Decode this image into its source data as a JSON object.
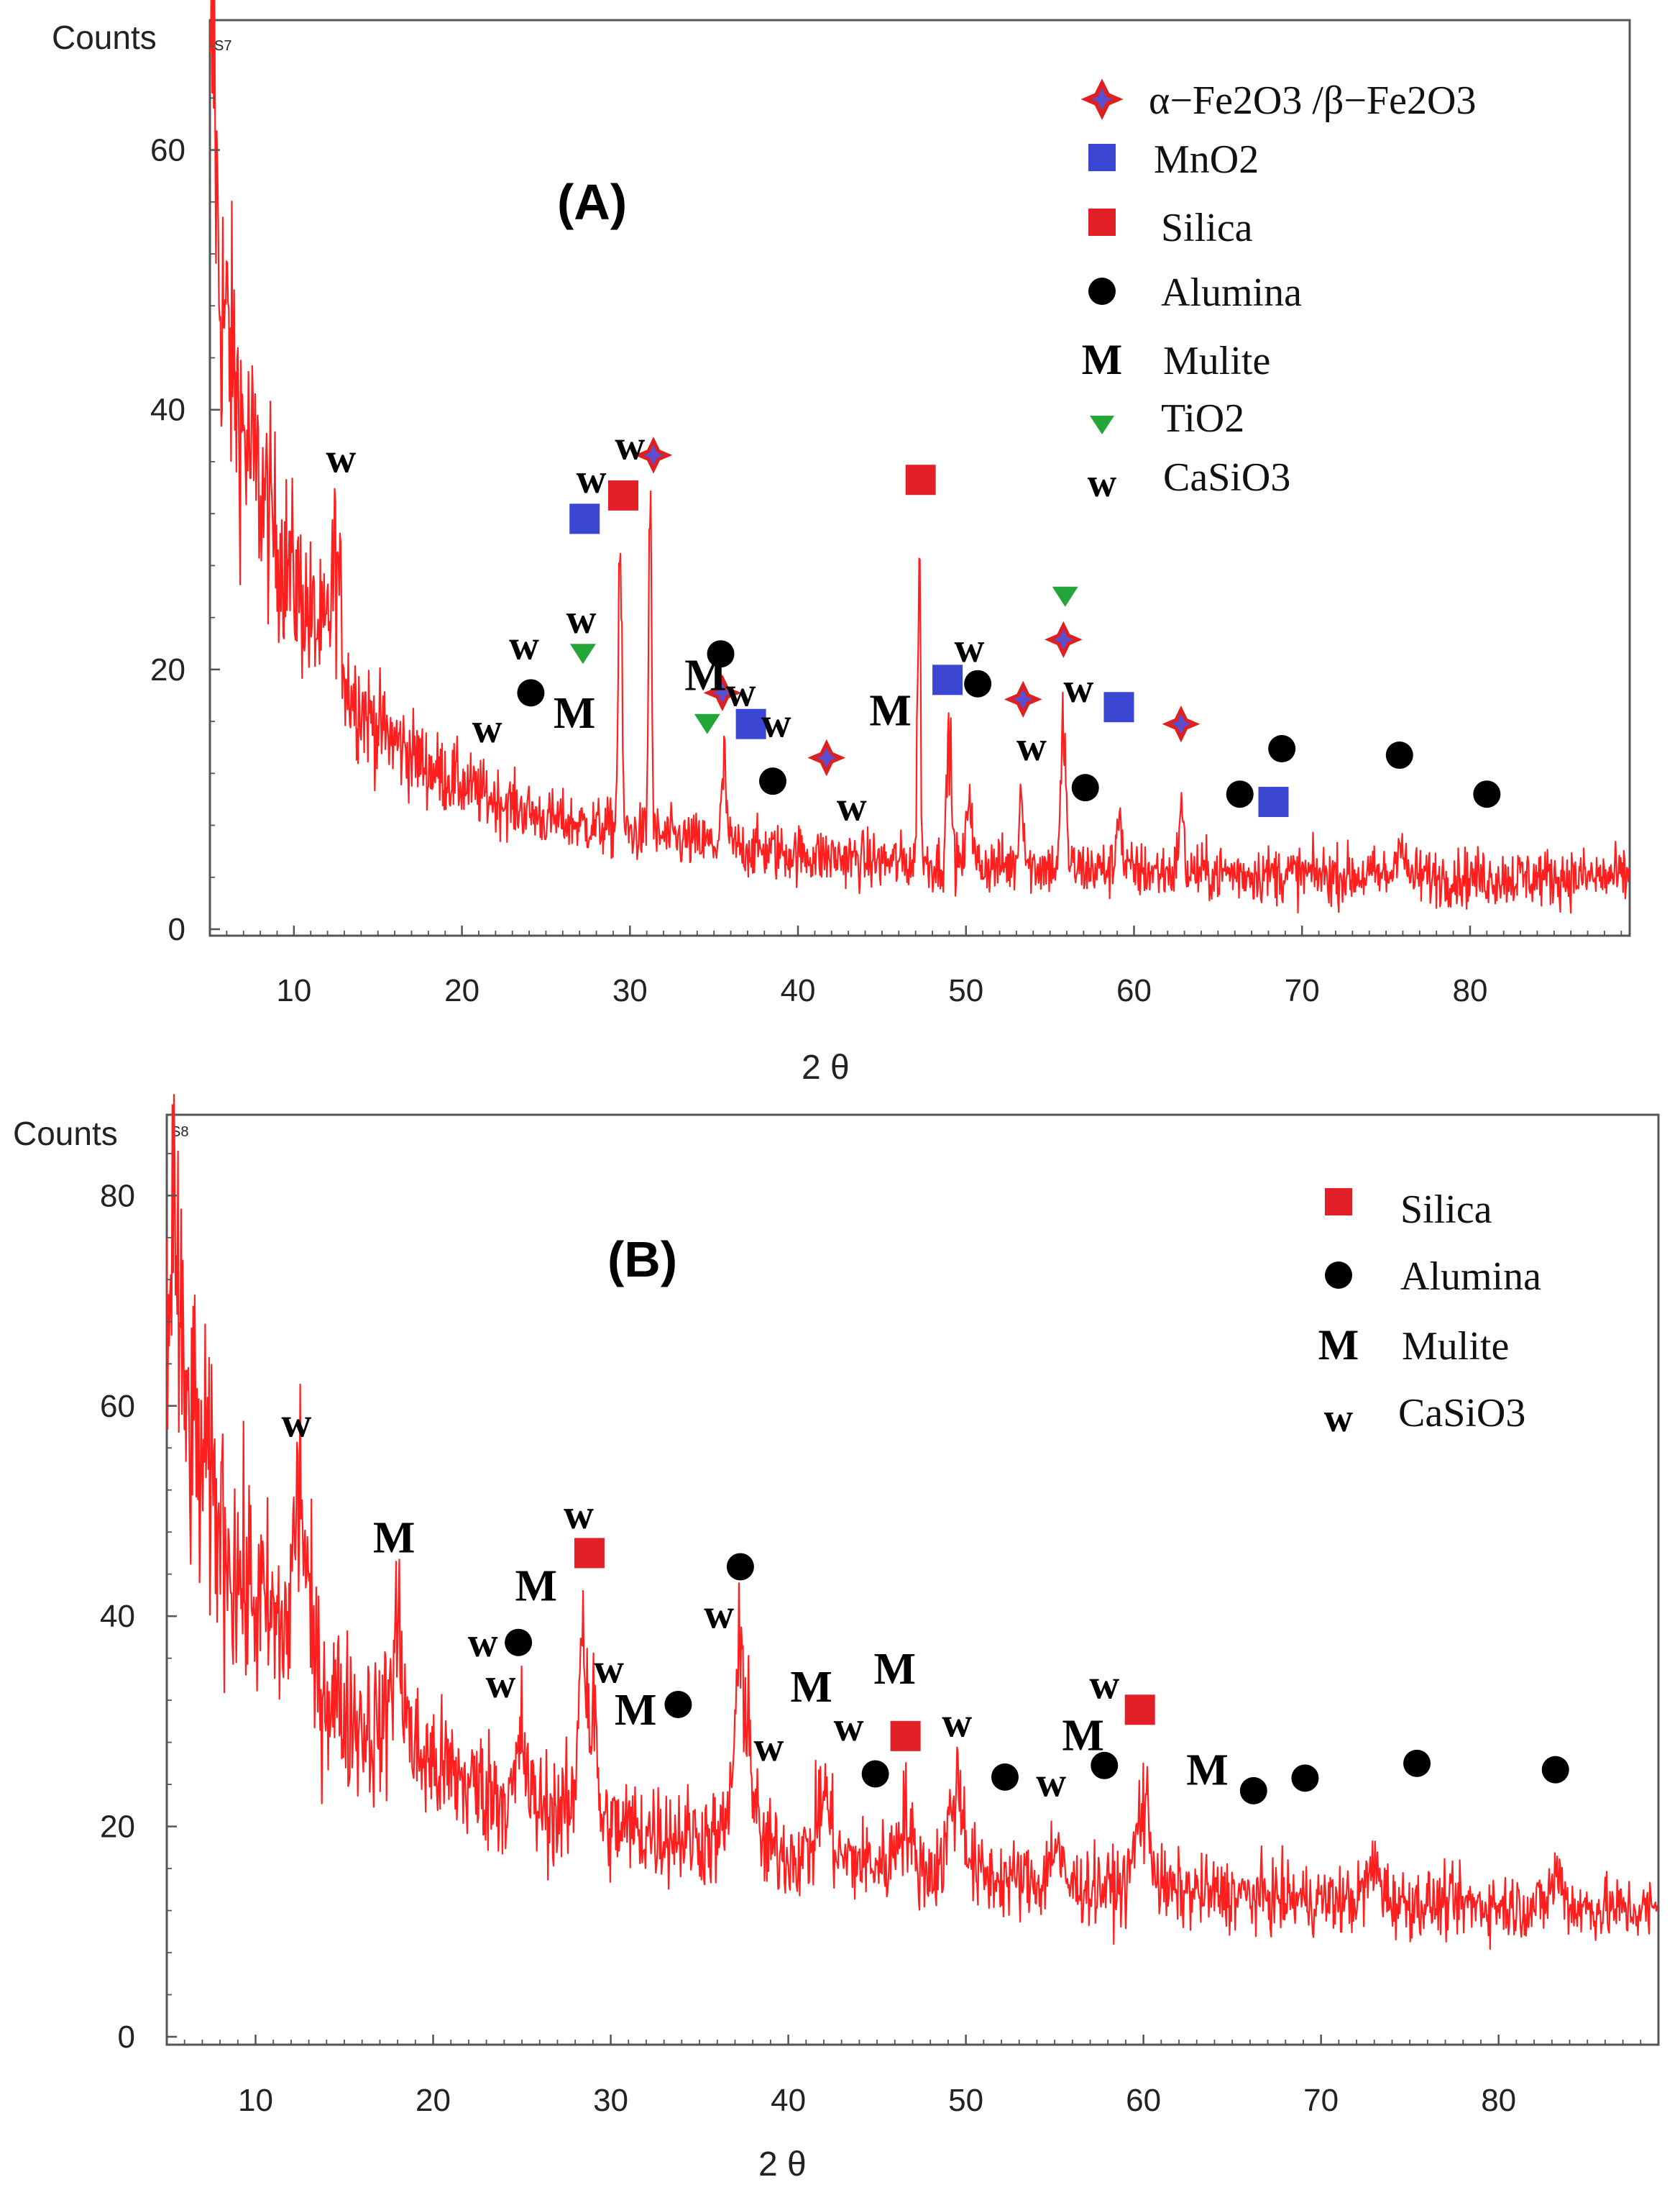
{
  "colors": {
    "trace": "#ff1f1f",
    "fe2o3_star_fill": "#5a4fd0",
    "fe2o3_star_outline": "#e0201e",
    "mno2": "#3a46d2",
    "silica": "#e32027",
    "alumina": "#000000",
    "tio2": "#22a63a",
    "axis": "#555555"
  },
  "chart_data": [
    {
      "type": "line",
      "panel_label": "(A)",
      "ylabel": "Counts",
      "xlabel": "2 θ",
      "scan_id": "S7",
      "xlim": [
        5,
        89.5
      ],
      "ylim": [
        0,
        70
      ],
      "x_ticks": [
        10,
        20,
        30,
        40,
        50,
        60,
        70,
        80
      ],
      "y_ticks": [
        0,
        20,
        40,
        60
      ],
      "legend": [
        {
          "symbol": "star-icon",
          "label": "α−Fe2O3 /β−Fe2O3"
        },
        {
          "symbol": "blue-square-icon",
          "label": "MnO2"
        },
        {
          "symbol": "red-square-icon",
          "label": "Silica"
        },
        {
          "symbol": "black-circle-icon",
          "label": "Alumina"
        },
        {
          "symbol": "M",
          "label": "Mulite"
        },
        {
          "symbol": "green-triangle-icon",
          "label": "TiO2"
        },
        {
          "symbol": "w",
          "label": "CaSiO3"
        }
      ],
      "background_curve": [
        [
          5,
          54
        ],
        [
          7,
          38
        ],
        [
          9,
          30
        ],
        [
          11,
          24
        ],
        [
          13,
          19
        ],
        [
          15,
          15.5
        ],
        [
          18,
          12.5
        ],
        [
          21,
          10.5
        ],
        [
          25,
          8.5
        ],
        [
          30,
          7.5
        ],
        [
          35,
          6.5
        ],
        [
          40,
          5.8
        ],
        [
          45,
          5.2
        ],
        [
          50,
          5
        ],
        [
          55,
          4.8
        ],
        [
          60,
          4.5
        ],
        [
          70,
          4.2
        ],
        [
          80,
          4
        ],
        [
          89.5,
          4
        ]
      ],
      "peaks": [
        {
          "x": 5.2,
          "h": 16,
          "w": 0.2
        },
        {
          "x": 12.5,
          "h": 8,
          "w": 0.4
        },
        {
          "x": 29.4,
          "h": 22,
          "w": 0.15
        },
        {
          "x": 31.2,
          "h": 28,
          "w": 0.12
        },
        {
          "x": 35.6,
          "h": 6,
          "w": 0.2
        },
        {
          "x": 47.2,
          "h": 25,
          "w": 0.12
        },
        {
          "x": 49,
          "h": 10,
          "w": 0.2
        },
        {
          "x": 50.2,
          "h": 6,
          "w": 0.2
        },
        {
          "x": 53.3,
          "h": 6,
          "w": 0.2
        },
        {
          "x": 55.8,
          "h": 11,
          "w": 0.2
        },
        {
          "x": 59.1,
          "h": 5,
          "w": 0.2
        },
        {
          "x": 62.8,
          "h": 5,
          "w": 0.2
        },
        {
          "x": 75.8,
          "h": 3,
          "w": 0.3
        }
      ],
      "markers": [
        {
          "shape": "star",
          "x": 31.4,
          "y": 36.5
        },
        {
          "shape": "star",
          "x": 35.5,
          "y": 18.2
        },
        {
          "shape": "star",
          "x": 41.7,
          "y": 13.2
        },
        {
          "shape": "star",
          "x": 53.4,
          "y": 17.7
        },
        {
          "shape": "star",
          "x": 55.8,
          "y": 22.3
        },
        {
          "shape": "star",
          "x": 62.8,
          "y": 15.8
        },
        {
          "shape": "blue-square",
          "x": 27.3,
          "y": 31.6
        },
        {
          "shape": "blue-square",
          "x": 37.2,
          "y": 15.8
        },
        {
          "shape": "blue-square",
          "x": 48.9,
          "y": 19.2
        },
        {
          "shape": "blue-square",
          "x": 59.1,
          "y": 17.1
        },
        {
          "shape": "blue-square",
          "x": 68.3,
          "y": 9.8
        },
        {
          "shape": "red-square",
          "x": 29.6,
          "y": 33.4
        },
        {
          "shape": "red-square",
          "x": 47.3,
          "y": 34.6
        },
        {
          "shape": "circle",
          "x": 24.1,
          "y": 18.2
        },
        {
          "shape": "circle",
          "x": 35.4,
          "y": 21.2
        },
        {
          "shape": "circle",
          "x": 38.5,
          "y": 11.4
        },
        {
          "shape": "circle",
          "x": 50.7,
          "y": 18.9
        },
        {
          "shape": "circle",
          "x": 57.1,
          "y": 10.9
        },
        {
          "shape": "circle",
          "x": 66.3,
          "y": 10.4
        },
        {
          "shape": "circle",
          "x": 68.8,
          "y": 13.9
        },
        {
          "shape": "circle",
          "x": 75.8,
          "y": 13.4
        },
        {
          "shape": "circle",
          "x": 81,
          "y": 10.4
        },
        {
          "shape": "triangle",
          "x": 27.2,
          "y": 21.2
        },
        {
          "shape": "triangle",
          "x": 34.6,
          "y": 15.8
        },
        {
          "shape": "triangle",
          "x": 55.9,
          "y": 25.6
        }
      ],
      "annotations": [
        {
          "text": "w",
          "x": 12.8,
          "y": 36.2
        },
        {
          "text": "w",
          "x": 23.7,
          "y": 21.8
        },
        {
          "text": "w",
          "x": 21.5,
          "y": 15.4
        },
        {
          "text": "w",
          "x": 27.1,
          "y": 23.8
        },
        {
          "text": "w",
          "x": 27.7,
          "y": 34.6
        },
        {
          "text": "w",
          "x": 30.0,
          "y": 37.2
        },
        {
          "text": "w",
          "x": 36.6,
          "y": 18.2
        },
        {
          "text": "w",
          "x": 38.7,
          "y": 15.8
        },
        {
          "text": "w",
          "x": 43.2,
          "y": 9.4
        },
        {
          "text": "w",
          "x": 50.2,
          "y": 21.6
        },
        {
          "text": "w",
          "x": 56.7,
          "y": 18.5
        },
        {
          "text": "w",
          "x": 53.9,
          "y": 14.0
        },
        {
          "text": "M",
          "x": 26.7,
          "y": 16.5
        },
        {
          "text": "M",
          "x": 34.5,
          "y": 19.4
        },
        {
          "text": "M",
          "x": 45.5,
          "y": 16.7
        }
      ]
    },
    {
      "type": "line",
      "panel_label": "(B)",
      "ylabel": "Counts",
      "xlabel": "2 θ",
      "scan_id": "S8",
      "xlim": [
        5,
        89
      ],
      "ylim": [
        0,
        87
      ],
      "x_ticks": [
        10,
        20,
        30,
        40,
        50,
        60,
        70,
        80
      ],
      "y_ticks": [
        0,
        20,
        40,
        60,
        80
      ],
      "legend": [
        {
          "symbol": "red-square-icon",
          "label": "Silica"
        },
        {
          "symbol": "black-circle-icon",
          "label": "Alumina"
        },
        {
          "symbol": "M",
          "label": "Mulite"
        },
        {
          "symbol": "w",
          "label": "CaSiO3"
        }
      ],
      "background_curve": [
        [
          5,
          66
        ],
        [
          7,
          54
        ],
        [
          9,
          44
        ],
        [
          12,
          37
        ],
        [
          15,
          31
        ],
        [
          18,
          28
        ],
        [
          22,
          24
        ],
        [
          26,
          22
        ],
        [
          30,
          20
        ],
        [
          35,
          19
        ],
        [
          40,
          17.5
        ],
        [
          45,
          16.5
        ],
        [
          50,
          15.5
        ],
        [
          55,
          14.5
        ],
        [
          60,
          14
        ],
        [
          65,
          13.5
        ],
        [
          70,
          13
        ],
        [
          80,
          12.5
        ],
        [
          89,
          12
        ]
      ],
      "peaks": [
        {
          "x": 5.4,
          "h": 14,
          "w": 0.3
        },
        {
          "x": 12.5,
          "h": 16,
          "w": 0.5
        },
        {
          "x": 18,
          "h": 10,
          "w": 0.5
        },
        {
          "x": 25,
          "h": 6,
          "w": 0.3
        },
        {
          "x": 28.4,
          "h": 20,
          "w": 0.3
        },
        {
          "x": 29,
          "h": 10,
          "w": 0.3
        },
        {
          "x": 37.4,
          "h": 17,
          "w": 0.6
        },
        {
          "x": 42,
          "h": 6,
          "w": 0.5
        },
        {
          "x": 46.5,
          "h": 5,
          "w": 0.5
        },
        {
          "x": 49.5,
          "h": 8,
          "w": 0.6
        },
        {
          "x": 55,
          "h": 4,
          "w": 0.4
        },
        {
          "x": 60,
          "h": 8,
          "w": 0.6
        },
        {
          "x": 73,
          "h": 3,
          "w": 0.6
        },
        {
          "x": 83.3,
          "h": 3,
          "w": 0.5
        }
      ],
      "markers": [
        {
          "shape": "red-square",
          "x": 28.8,
          "y": 46.0
        },
        {
          "shape": "red-square",
          "x": 46.6,
          "y": 28.6
        },
        {
          "shape": "red-square",
          "x": 59.8,
          "y": 31.1
        },
        {
          "shape": "circle",
          "x": 24.8,
          "y": 37.5
        },
        {
          "shape": "circle",
          "x": 33.8,
          "y": 31.6
        },
        {
          "shape": "circle",
          "x": 37.3,
          "y": 44.7
        },
        {
          "shape": "circle",
          "x": 44.9,
          "y": 25.0
        },
        {
          "shape": "circle",
          "x": 52.2,
          "y": 24.7
        },
        {
          "shape": "circle",
          "x": 57.8,
          "y": 25.8
        },
        {
          "shape": "circle",
          "x": 66.2,
          "y": 23.4
        },
        {
          "shape": "circle",
          "x": 69.1,
          "y": 24.6
        },
        {
          "shape": "circle",
          "x": 75.4,
          "y": 26.0
        },
        {
          "shape": "circle",
          "x": 83.2,
          "y": 25.4
        }
      ],
      "annotations": [
        {
          "text": "w",
          "x": 12.3,
          "y": 58.3
        },
        {
          "text": "w",
          "x": 28.2,
          "y": 49.6
        },
        {
          "text": "w",
          "x": 22.8,
          "y": 37.4
        },
        {
          "text": "w",
          "x": 23.8,
          "y": 33.5
        },
        {
          "text": "w",
          "x": 29.9,
          "y": 34.9
        },
        {
          "text": "w",
          "x": 36.1,
          "y": 40.1
        },
        {
          "text": "w",
          "x": 38.9,
          "y": 27.5
        },
        {
          "text": "w",
          "x": 43.4,
          "y": 29.4
        },
        {
          "text": "w",
          "x": 49.5,
          "y": 29.8
        },
        {
          "text": "w",
          "x": 54.8,
          "y": 24.1
        },
        {
          "text": "w",
          "x": 57.8,
          "y": 33.4
        },
        {
          "text": "M",
          "x": 17.8,
          "y": 47.3
        },
        {
          "text": "M",
          "x": 25.8,
          "y": 42.7
        },
        {
          "text": "M",
          "x": 31.4,
          "y": 30.9
        },
        {
          "text": "M",
          "x": 41.3,
          "y": 33.1
        },
        {
          "text": "M",
          "x": 46.0,
          "y": 34.8
        },
        {
          "text": "M",
          "x": 56.6,
          "y": 28.5
        },
        {
          "text": "M",
          "x": 63.6,
          "y": 25.2
        }
      ]
    }
  ]
}
